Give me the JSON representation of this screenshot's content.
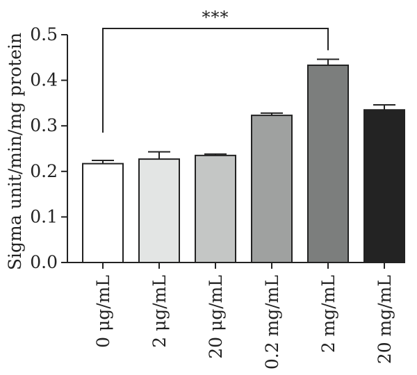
{
  "chart_data": {
    "type": "bar",
    "title": "",
    "xlabel": "",
    "ylabel": "Sigma unit/min/mg protein",
    "ylim": [
      0,
      0.5
    ],
    "yticks": [
      "0.0",
      "0.1",
      "0.2",
      "0.3",
      "0.4",
      "0.5"
    ],
    "categories": [
      "0 μg/mL",
      "2 μg/mL",
      "20 μg/mL",
      "0.2 mg/mL",
      "2 mg/mL",
      "20 mg/mL"
    ],
    "values": [
      0.217,
      0.227,
      0.235,
      0.323,
      0.433,
      0.335
    ],
    "errors": [
      0.007,
      0.016,
      0.003,
      0.005,
      0.013,
      0.011
    ],
    "bar_colors": [
      "#ffffff",
      "#e3e5e4",
      "#c4c6c5",
      "#9fa1a0",
      "#7c7e7d",
      "#232323"
    ],
    "grid": false,
    "legend": "none",
    "significance": {
      "label": "***",
      "from_category": 0,
      "to_category": 4,
      "y": 0.515
    }
  }
}
